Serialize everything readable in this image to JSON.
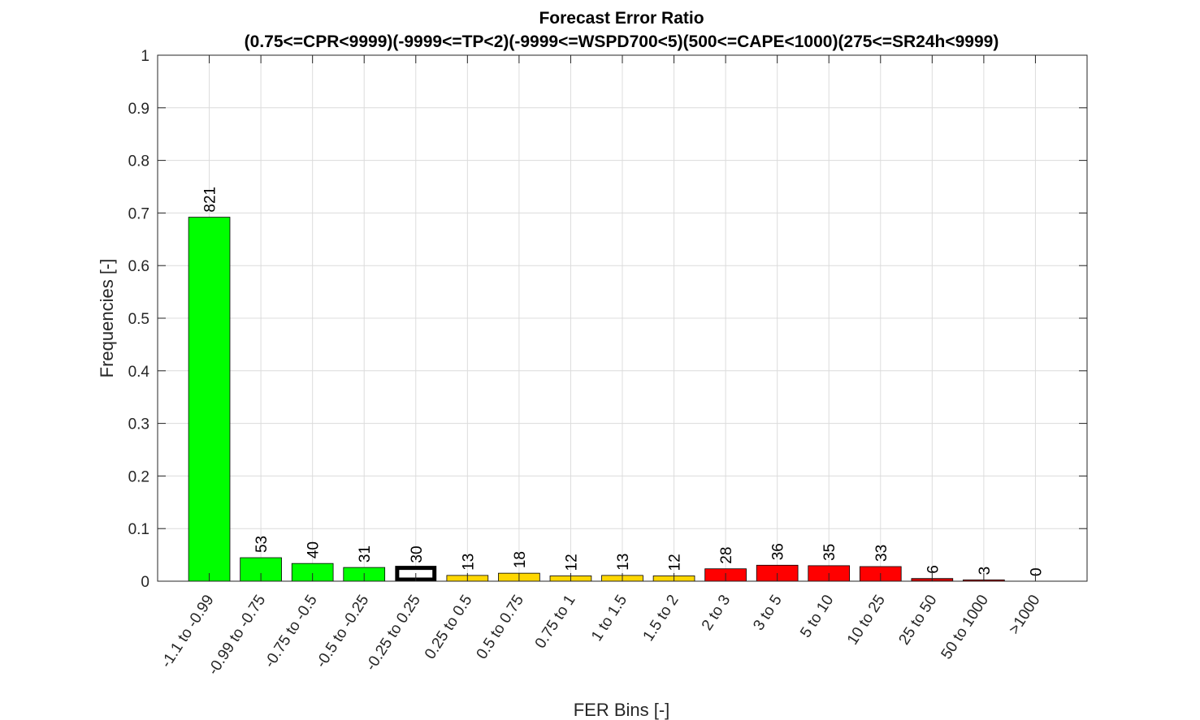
{
  "chart_data": {
    "type": "bar",
    "title": "Forecast Error Ratio",
    "subtitle": "(0.75<=CPR<9999)(-9999<=TP<2)(-9999<=WSPD700<5)(500<=CAPE<1000)(275<=SR24h<9999)",
    "xlabel": "FER Bins [-]",
    "ylabel": "Frequencies [-]",
    "ylim": [
      0,
      1
    ],
    "yticks": [
      "0",
      "0.1",
      "0.2",
      "0.3",
      "0.4",
      "0.5",
      "0.6",
      "0.7",
      "0.8",
      "0.9",
      "1"
    ],
    "grid": true,
    "categories": [
      "-1.1 to -0.99",
      "-0.99 to -0.75",
      "-0.75 to -0.5",
      "-0.5 to -0.25",
      "-0.25 to 0.25",
      "0.25 to 0.5",
      "0.5 to 0.75",
      "0.75 to 1",
      "1 to 1.5",
      "1.5 to 2",
      "2 to 3",
      "3 to 5",
      "5 to 10",
      "10 to 25",
      "25 to 50",
      "50 to 1000",
      ">1000"
    ],
    "counts": [
      "821",
      "53",
      "40",
      "31",
      "30",
      "13",
      "18",
      "12",
      "13",
      "12",
      "28",
      "36",
      "35",
      "33",
      "6",
      "3",
      "0"
    ],
    "values": [
      0.692,
      0.0447,
      0.0337,
      0.0261,
      0.0253,
      0.011,
      0.0152,
      0.0101,
      0.011,
      0.0101,
      0.0236,
      0.0304,
      0.0295,
      0.0278,
      0.0051,
      0.0025,
      0.0
    ],
    "colors": [
      "#00ff00",
      "#00ff00",
      "#00ff00",
      "#00ff00",
      "#ffffff",
      "#ffd700",
      "#ffd700",
      "#ffd700",
      "#ffd700",
      "#ffd700",
      "#ff0000",
      "#ff0000",
      "#ff0000",
      "#ff0000",
      "#cc0000",
      "#cc0000",
      "#cc0000"
    ],
    "highlight_category": "-0.25 to 0.25"
  }
}
